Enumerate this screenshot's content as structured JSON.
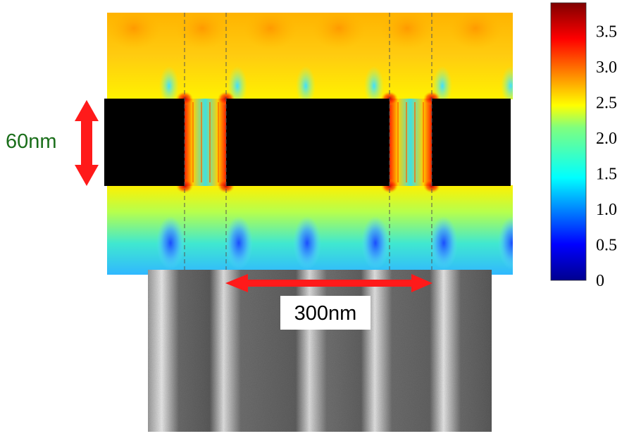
{
  "annotations": {
    "thickness_label": "60nm",
    "period_label": "300nm"
  },
  "colorbar": {
    "ticks": [
      {
        "label": "3.5",
        "value": 3.5
      },
      {
        "label": "3.0",
        "value": 3.0
      },
      {
        "label": "2.5",
        "value": 2.5
      },
      {
        "label": "2.0",
        "value": 2.0
      },
      {
        "label": "1.5",
        "value": 1.5
      },
      {
        "label": "1.0",
        "value": 1.0
      },
      {
        "label": "0.5",
        "value": 0.5
      },
      {
        "label": "0",
        "value": 0
      }
    ],
    "range": [
      0,
      3.9
    ],
    "colormap": [
      "#00008f",
      "#0000ff",
      "#00ffff",
      "#ffff00",
      "#ff0000",
      "#800000"
    ]
  },
  "colors": {
    "arrow": "#ff1a1a",
    "thickness_label": "#1a6e1a",
    "metal_strip": "#000000",
    "guide_lines": "#555555"
  }
}
